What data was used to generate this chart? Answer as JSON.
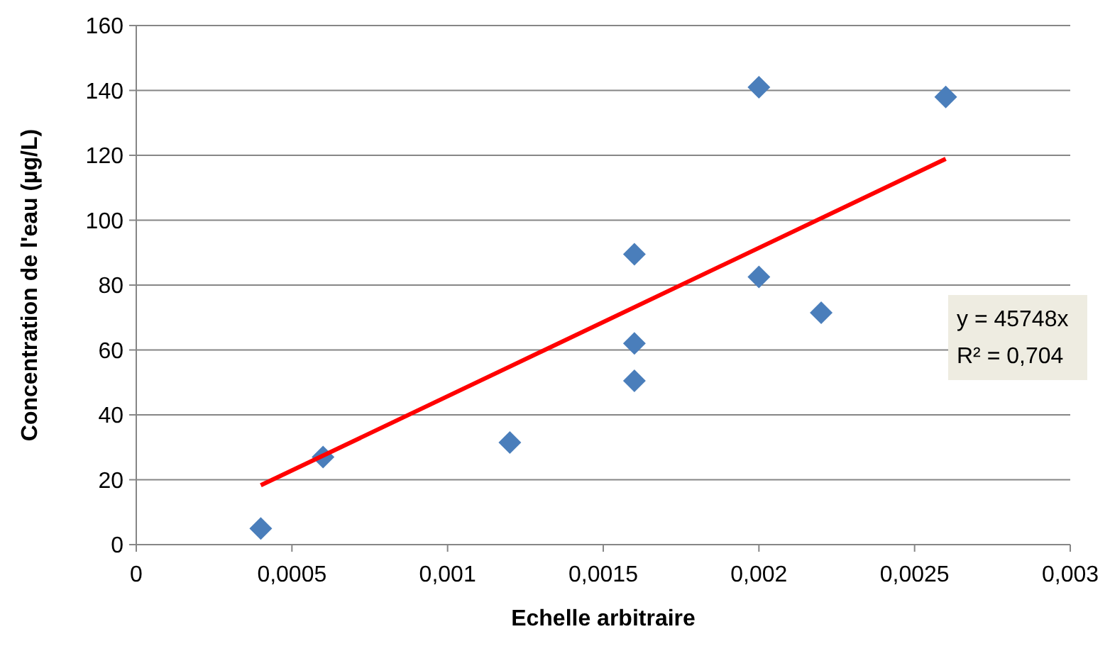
{
  "chart_data": {
    "type": "scatter",
    "xlabel": "Echelle arbitraire",
    "ylabel": "Concentration de l'eau (µg/L)",
    "xlim": [
      0,
      0.003
    ],
    "xticks": [
      0,
      {
        "value": 0.0005,
        "label": "0,0005"
      },
      {
        "value": 0.001,
        "label": "0,001"
      },
      {
        "value": 0.0015,
        "label": "0,0015"
      },
      {
        "value": 0.002,
        "label": "0,002"
      },
      {
        "value": 0.0025,
        "label": "0,0025"
      },
      {
        "value": 0.003,
        "label": "0,003"
      }
    ],
    "ylim": [
      0,
      160
    ],
    "yticks": [
      0,
      20,
      40,
      60,
      80,
      100,
      120,
      140,
      160
    ],
    "grid": "y",
    "series": [
      {
        "type": "scatter",
        "color": "#4a7ebb",
        "marker": "diamond",
        "x": [
          0.0004,
          0.0006,
          0.0012,
          0.0016,
          0.0016,
          0.0016,
          0.002,
          0.002,
          0.0022,
          0.0026
        ],
        "values": [
          5,
          27,
          31.5,
          89.5,
          62,
          50.5,
          141,
          82.5,
          71.5,
          138
        ]
      },
      {
        "type": "line",
        "color": "#ff0000",
        "marker": "none",
        "line_style": "solid",
        "x": [
          0.0004,
          0.0026
        ],
        "values": [
          18.3,
          118.9
        ]
      }
    ],
    "annotations": [
      "y = 45748x",
      "R² = 0,704"
    ]
  }
}
